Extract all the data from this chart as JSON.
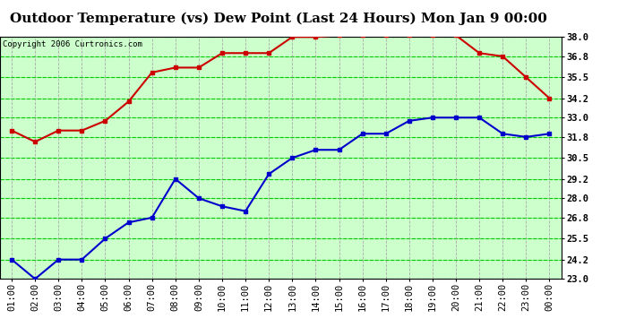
{
  "title": "Outdoor Temperature (vs) Dew Point (Last 24 Hours) Mon Jan 9 00:00",
  "copyright": "Copyright 2006 Curtronics.com",
  "x_labels": [
    "01:00",
    "02:00",
    "03:00",
    "04:00",
    "05:00",
    "06:00",
    "07:00",
    "08:00",
    "09:00",
    "10:00",
    "11:00",
    "12:00",
    "13:00",
    "14:00",
    "15:00",
    "16:00",
    "17:00",
    "18:00",
    "19:00",
    "20:00",
    "21:00",
    "22:00",
    "23:00",
    "00:00"
  ],
  "temp_data": [
    32.2,
    31.5,
    32.2,
    32.2,
    32.8,
    34.0,
    35.8,
    36.1,
    36.1,
    37.0,
    37.0,
    37.0,
    38.0,
    38.0,
    38.1,
    38.1,
    38.1,
    38.1,
    38.1,
    38.1,
    37.0,
    36.8,
    35.5,
    34.2
  ],
  "dew_data": [
    24.2,
    23.0,
    24.2,
    24.2,
    25.5,
    26.5,
    26.8,
    29.2,
    28.0,
    27.5,
    27.2,
    29.5,
    30.5,
    31.0,
    31.0,
    32.0,
    32.0,
    32.8,
    33.0,
    33.0,
    33.0,
    32.0,
    31.8,
    32.0
  ],
  "temp_color": "#cc0000",
  "dew_color": "#0000cc",
  "grid_h_color": "#00cc00",
  "grid_v_color": "#aaaaaa",
  "bg_color": "#ffffff",
  "plot_bg_color": "#ccffcc",
  "y_min": 23.0,
  "y_max": 38.0,
  "y_ticks": [
    23.0,
    24.2,
    25.5,
    26.8,
    28.0,
    29.2,
    30.5,
    31.8,
    33.0,
    34.2,
    35.5,
    36.8,
    38.0
  ],
  "title_fontsize": 11,
  "tick_fontsize": 7.5,
  "marker": "s",
  "markersize": 3
}
